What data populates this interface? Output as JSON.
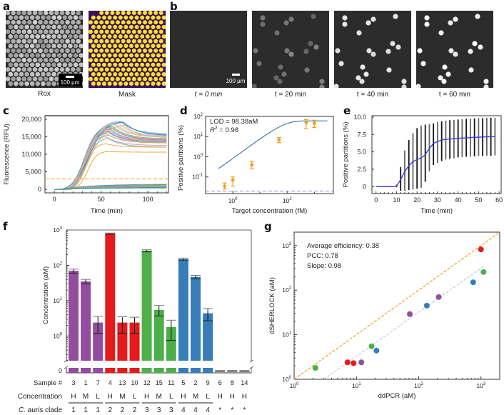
{
  "panels": {
    "a": {
      "letter": "a",
      "captions": [
        "Rox",
        "Mask"
      ],
      "scalebar": "100 µm"
    },
    "b": {
      "letter": "b",
      "captions": [
        "t = 0 min",
        "t = 20 min",
        "t = 40 min",
        "t = 60 min"
      ],
      "scalebar": "100 µm"
    },
    "c": {
      "letter": "c"
    },
    "d": {
      "letter": "d"
    },
    "e": {
      "letter": "e"
    },
    "f": {
      "letter": "f"
    },
    "g": {
      "letter": "g"
    }
  },
  "colors": {
    "purple": "#944ca0",
    "red": "#e41a1c",
    "green": "#4daf4a",
    "blue": "#377eb8",
    "gray": "#999999",
    "orange": "#f0a020",
    "fit_blue": "#2166ac",
    "mask_bg": "#3d0f5a",
    "mask_dot": "#f5e12a"
  },
  "chart_data": [
    {
      "id": "c",
      "type": "line",
      "xlabel": "Time (min)",
      "ylabel": "Fluorescence (RFU)",
      "xlim": [
        -10,
        122
      ],
      "ylim": [
        -1000,
        21000
      ],
      "xticks": [
        0,
        50,
        100
      ],
      "yticks": [
        0,
        5000,
        10000,
        15000,
        20000
      ],
      "ytick_labels": [
        "0",
        "5,000",
        "10,000",
        "15,000",
        "20,000"
      ],
      "threshold": 3000,
      "series_summary": "~24 positive amplification curves (plateau 10,500–19,500 RFU) and ~10 negative curves (<1,500 RFU)",
      "positive_plateaus": [
        19500,
        19300,
        19000,
        18800,
        18500,
        18200,
        18000,
        17800,
        17500,
        17200,
        17000,
        16800,
        16500,
        16200,
        15800,
        15500,
        15000,
        14500,
        13000,
        19200,
        18600,
        17600,
        16600,
        10800
      ],
      "positive_final": [
        15800,
        15500,
        15200,
        15000,
        14800,
        14600,
        14400,
        14200,
        14000,
        13800,
        13700,
        13600,
        13500,
        13400,
        13300,
        13200,
        12500,
        12000,
        12000,
        15300,
        14900,
        14300,
        13900,
        10600
      ],
      "positive_peak_time": [
        70,
        72,
        68,
        65,
        64,
        75,
        62,
        60,
        62,
        60,
        58,
        60,
        58,
        58,
        56,
        58,
        55,
        58,
        55,
        74,
        66,
        62,
        60,
        57
      ],
      "positive_onset": [
        7,
        7,
        8,
        8,
        9,
        8,
        9,
        9,
        10,
        10,
        11,
        10,
        12,
        12,
        13,
        13,
        14,
        14,
        16,
        7,
        9,
        10,
        11,
        18
      ],
      "negative_final": [
        1500,
        1300,
        1200,
        1000,
        900,
        800,
        700,
        600,
        500,
        400
      ]
    },
    {
      "id": "d",
      "type": "scatter",
      "xlabel": "Target concentration (fM)",
      "ylabel": "Positive partitions (%)",
      "xscale": "log",
      "yscale": "log",
      "xlim": [
        0.1,
        5000
      ],
      "ylim": [
        0.015,
        100
      ],
      "xticks": [
        1,
        100
      ],
      "xtick_labels": [
        "10^0",
        "10^2"
      ],
      "yticks": [
        0.1,
        1,
        10,
        100
      ],
      "ytick_labels": [
        "10^-1",
        "10^0",
        "10^1",
        "10^2"
      ],
      "annotation": [
        "LOD = 98.38aM",
        "R^2 = 0.98"
      ],
      "points": [
        {
          "x": 0.5,
          "y": 0.035,
          "lo": 0.025,
          "hi": 0.05
        },
        {
          "x": 1,
          "y": 0.07,
          "lo": 0.035,
          "hi": 0.1
        },
        {
          "x": 5,
          "y": 0.4,
          "lo": 0.25,
          "hi": 0.6
        },
        {
          "x": 50,
          "y": 7,
          "lo": 5,
          "hi": 9
        },
        {
          "x": 500,
          "y": 50,
          "lo": 25,
          "hi": 70
        },
        {
          "x": 1000,
          "y": 45,
          "lo": 28,
          "hi": 65
        }
      ],
      "fit_plateau": 60,
      "background": 0.02
    },
    {
      "id": "e",
      "type": "line",
      "xlabel": "Time (min)",
      "ylabel": "Positive partitions (%)",
      "xlim": [
        -2,
        61
      ],
      "ylim": [
        -1,
        10.2
      ],
      "xticks": [
        0,
        10,
        20,
        30,
        40,
        50,
        60
      ],
      "yticks": [
        0,
        2.5,
        5.0,
        7.5,
        10.0
      ],
      "ytick_labels": [
        "0",
        "2.5",
        "5.0",
        "7.5",
        "10.0"
      ],
      "mean": [
        [
          0,
          0
        ],
        [
          2,
          0
        ],
        [
          4,
          0
        ],
        [
          6,
          0
        ],
        [
          8,
          0
        ],
        [
          10,
          0.05
        ],
        [
          12,
          1.0
        ],
        [
          14,
          2.2
        ],
        [
          16,
          3.0
        ],
        [
          18,
          3.6
        ],
        [
          20,
          3.9
        ],
        [
          22,
          4.1
        ],
        [
          24,
          4.6
        ],
        [
          26,
          5.5
        ],
        [
          28,
          6.2
        ],
        [
          30,
          6.5
        ],
        [
          32,
          6.7
        ],
        [
          34,
          6.8
        ],
        [
          36,
          6.85
        ],
        [
          38,
          6.9
        ],
        [
          40,
          6.95
        ],
        [
          42,
          7.0
        ],
        [
          44,
          7.0
        ],
        [
          46,
          7.05
        ],
        [
          48,
          7.1
        ],
        [
          50,
          7.1
        ],
        [
          52,
          7.15
        ],
        [
          54,
          7.15
        ],
        [
          56,
          7.2
        ],
        [
          58,
          7.2
        ]
      ],
      "errorbars": [
        {
          "x": 10,
          "lo": -0.1,
          "hi": 0.3
        },
        {
          "x": 12,
          "lo": -0.6,
          "hi": 2.8
        },
        {
          "x": 14,
          "lo": -0.6,
          "hi": 5.2
        },
        {
          "x": 16,
          "lo": -0.5,
          "hi": 6.7
        },
        {
          "x": 18,
          "lo": -0.4,
          "hi": 7.7
        },
        {
          "x": 20,
          "lo": -0.3,
          "hi": 8.4
        },
        {
          "x": 22,
          "lo": -0.2,
          "hi": 8.8
        },
        {
          "x": 24,
          "lo": 0.7,
          "hi": 8.9
        },
        {
          "x": 26,
          "lo": 2.2,
          "hi": 9.0
        },
        {
          "x": 28,
          "lo": 3.1,
          "hi": 9.1
        },
        {
          "x": 30,
          "lo": 3.4,
          "hi": 9.3
        },
        {
          "x": 32,
          "lo": 3.7,
          "hi": 9.4
        },
        {
          "x": 34,
          "lo": 3.9,
          "hi": 9.5
        },
        {
          "x": 36,
          "lo": 4.0,
          "hi": 9.55
        },
        {
          "x": 38,
          "lo": 4.1,
          "hi": 9.6
        },
        {
          "x": 40,
          "lo": 4.2,
          "hi": 9.65
        },
        {
          "x": 42,
          "lo": 4.25,
          "hi": 9.7
        },
        {
          "x": 44,
          "lo": 4.3,
          "hi": 9.75
        },
        {
          "x": 46,
          "lo": 4.3,
          "hi": 9.8
        },
        {
          "x": 48,
          "lo": 4.35,
          "hi": 9.8
        },
        {
          "x": 50,
          "lo": 4.4,
          "hi": 9.85
        },
        {
          "x": 52,
          "lo": 4.4,
          "hi": 9.85
        },
        {
          "x": 54,
          "lo": 4.45,
          "hi": 9.9
        },
        {
          "x": 56,
          "lo": 4.45,
          "hi": 9.9
        },
        {
          "x": 58,
          "lo": 4.5,
          "hi": 9.9
        }
      ]
    },
    {
      "id": "f",
      "type": "bar",
      "ylabel": "Concentration (aM)",
      "yscale": "log",
      "ylim": [
        0.2,
        1000
      ],
      "yticks": [
        1,
        10,
        100,
        1000
      ],
      "ytick_labels": [
        "10^0",
        "10^1",
        "10^2",
        "10^3"
      ],
      "zero_label": "0",
      "row_labels": [
        "Sample #",
        "Concentration",
        "C. auris clade"
      ],
      "bars": [
        {
          "sample": "3",
          "conc": "H",
          "clade": "1",
          "value": 70,
          "lo": 60,
          "hi": 78,
          "color": "purple"
        },
        {
          "sample": "1",
          "conc": "M",
          "clade": "1",
          "value": 35,
          "lo": 30,
          "hi": 40,
          "color": "purple"
        },
        {
          "sample": "7",
          "conc": "L",
          "clade": "1",
          "value": 2.4,
          "lo": 1.2,
          "hi": 3.6,
          "color": "purple"
        },
        {
          "sample": "4",
          "conc": "H",
          "clade": "2",
          "value": 800,
          "lo": 760,
          "hi": 820,
          "color": "red"
        },
        {
          "sample": "13",
          "conc": "M",
          "clade": "2",
          "value": 2.4,
          "lo": 1.2,
          "hi": 3.5,
          "color": "red"
        },
        {
          "sample": "10",
          "conc": "L",
          "clade": "2",
          "value": 2.4,
          "lo": 1.2,
          "hi": 3.4,
          "color": "red"
        },
        {
          "sample": "12",
          "conc": "H",
          "clade": "3",
          "value": 260,
          "lo": 240,
          "hi": 275,
          "color": "green"
        },
        {
          "sample": "15",
          "conc": "M",
          "clade": "3",
          "value": 5.5,
          "lo": 3.7,
          "hi": 7.3,
          "color": "green"
        },
        {
          "sample": "11",
          "conc": "L",
          "clade": "3",
          "value": 1.8,
          "lo": 0.75,
          "hi": 2.8,
          "color": "green"
        },
        {
          "sample": "5",
          "conc": "H",
          "clade": "4",
          "value": 150,
          "lo": 140,
          "hi": 160,
          "color": "blue"
        },
        {
          "sample": "2",
          "conc": "M",
          "clade": "4",
          "value": 47,
          "lo": 42,
          "hi": 52,
          "color": "blue"
        },
        {
          "sample": "9",
          "conc": "L",
          "clade": "4",
          "value": 4.4,
          "lo": 2.7,
          "hi": 6.0,
          "color": "blue"
        },
        {
          "sample": "6",
          "conc": "H",
          "clade": "*",
          "value": 0,
          "lo": 0,
          "hi": 0,
          "color": "gray"
        },
        {
          "sample": "8",
          "conc": "H",
          "clade": "*",
          "value": 0,
          "lo": 0,
          "hi": 0,
          "color": "gray"
        },
        {
          "sample": "14",
          "conc": "H",
          "clade": "*",
          "value": 0,
          "lo": 0,
          "hi": 0,
          "color": "gray"
        }
      ]
    },
    {
      "id": "g",
      "type": "scatter",
      "xlabel": "ddPCR (aM)",
      "ylabel": "dSHERLOCK (aM)",
      "xscale": "log",
      "yscale": "log",
      "xlim": [
        1,
        2000
      ],
      "ylim": [
        1,
        2000
      ],
      "xticks": [
        1,
        10,
        100,
        1000
      ],
      "xtick_labels": [
        "10^0",
        "10^1",
        "10^2",
        "10^3"
      ],
      "yticks": [
        1,
        10,
        100,
        1000
      ],
      "ytick_labels": [
        "10^0",
        "10^1",
        "10^2",
        "10^3"
      ],
      "annotation": [
        "Average efficiency: 0.38",
        "PCC: 0.78",
        "Slope: 0.98"
      ],
      "identity_line": true,
      "fit_line": {
        "x0": 3,
        "y0": 1,
        "x1": 1100,
        "y1": 340
      },
      "points": [
        {
          "x": 2.2,
          "y": 1.8,
          "color": "green"
        },
        {
          "x": 7.2,
          "y": 2.4,
          "color": "red"
        },
        {
          "x": 9.0,
          "y": 2.3,
          "color": "red"
        },
        {
          "x": 12,
          "y": 2.4,
          "color": "purple"
        },
        {
          "x": 17.5,
          "y": 5.5,
          "color": "green"
        },
        {
          "x": 21,
          "y": 4.4,
          "color": "blue"
        },
        {
          "x": 72,
          "y": 29,
          "color": "purple"
        },
        {
          "x": 135,
          "y": 45,
          "color": "blue"
        },
        {
          "x": 210,
          "y": 70,
          "color": "purple"
        },
        {
          "x": 750,
          "y": 150,
          "color": "blue"
        },
        {
          "x": 1000,
          "y": 820,
          "color": "red"
        },
        {
          "x": 1100,
          "y": 255,
          "color": "green"
        }
      ]
    }
  ]
}
